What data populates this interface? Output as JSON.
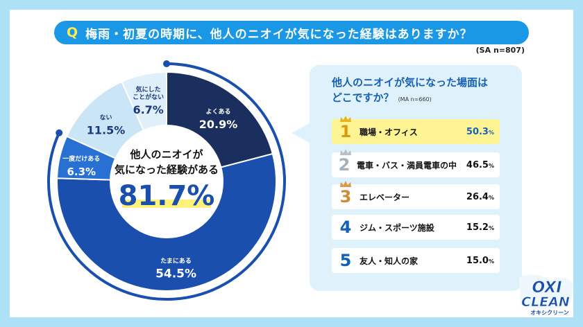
{
  "question": {
    "marker": "Q",
    "text": "梅雨・初夏の時期に、他人のニオイが気になった経験はありますか？"
  },
  "sample": "(SA n=807)",
  "center": {
    "line1": "他人のニオイが",
    "line2": "気になった経験がある",
    "value": "81.7%"
  },
  "chart_data": {
    "type": "pie",
    "categories": [
      "よくある",
      "たまにある",
      "一度だけある",
      "ない",
      "気にしたことがない"
    ],
    "values": [
      20.9,
      54.5,
      6.3,
      11.5,
      6.7
    ],
    "colors": [
      "#1b2f5e",
      "#1b4fae",
      "#2870d2",
      "#c9e5f6",
      "#e0f0fa"
    ],
    "value_labels": [
      "20.9%",
      "54.5%",
      "6.3%",
      "11.5%",
      "6.7%"
    ],
    "label_lines": [
      [
        "よくある"
      ],
      [
        "たまにある"
      ],
      [
        "一度だけある"
      ],
      [
        "ない"
      ],
      [
        "気にした",
        "ことがない"
      ]
    ]
  },
  "ranking": {
    "title_line1": "他人のニオイが気になった場面は",
    "title_line2": "どこですか？",
    "note": "(MA n=660)",
    "items": [
      {
        "rank": "1",
        "label": "職場・オフィス",
        "value": "50.3",
        "unit": "%"
      },
      {
        "rank": "2",
        "label": "電車・バス・満員電車の中",
        "value": "46.5",
        "unit": "%"
      },
      {
        "rank": "3",
        "label": "エレベーター",
        "value": "26.4",
        "unit": "%"
      },
      {
        "rank": "4",
        "label": "ジム・スポーツ施設",
        "value": "15.2",
        "unit": "%"
      },
      {
        "rank": "5",
        "label": "友人・知人の家",
        "value": "15.0",
        "unit": "%"
      }
    ]
  },
  "logo": {
    "line1": "OXI",
    "line2": "CLEAN",
    "tagline": "オキシクリーン"
  }
}
